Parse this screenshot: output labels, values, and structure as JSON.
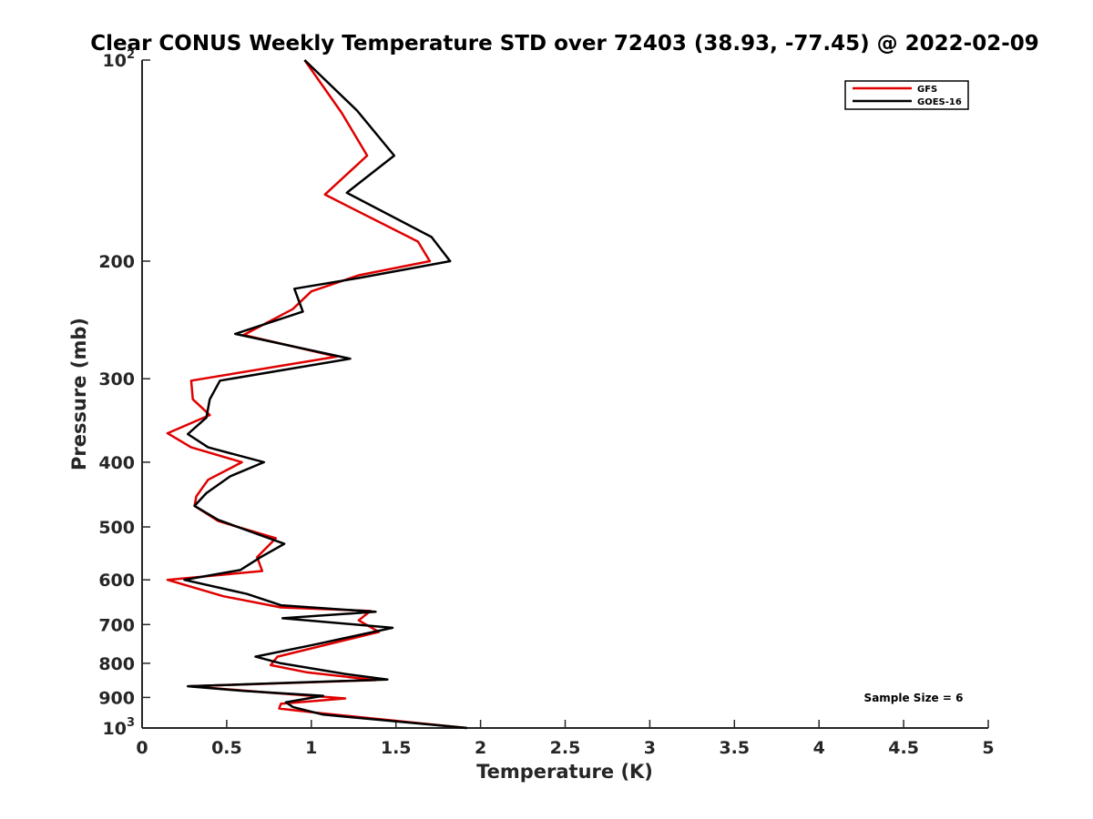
{
  "chart_data": {
    "type": "line",
    "title": "Clear CONUS Weekly Temperature STD over 72403 (38.93, -77.45) @ 2022-02-09",
    "xlabel": "Temperature (K)",
    "ylabel": "Pressure (mb)",
    "xlim": [
      0,
      5
    ],
    "ylim": [
      100,
      1000
    ],
    "y_scale": "log",
    "y_reversed": true,
    "x_ticks": [
      "0",
      "0.5",
      "1",
      "1.5",
      "2",
      "2.5",
      "3",
      "3.5",
      "4",
      "4.5",
      "5"
    ],
    "x_tick_values": [
      0,
      0.5,
      1,
      1.5,
      2,
      2.5,
      3,
      3.5,
      4,
      4.5,
      5
    ],
    "y_tick_values": [
      100,
      200,
      300,
      400,
      500,
      600,
      700,
      800,
      900,
      1000
    ],
    "y_tick_labels": [
      {
        "base": "10",
        "exp": "2"
      },
      {
        "base": "200"
      },
      {
        "base": "300"
      },
      {
        "base": "400"
      },
      {
        "base": "500"
      },
      {
        "base": "600"
      },
      {
        "base": "700"
      },
      {
        "base": "800"
      },
      {
        "base": "900"
      },
      {
        "base": "10",
        "exp": "3"
      }
    ],
    "grid": false,
    "legend_position": "top-right",
    "annotation": "Sample Size = 6",
    "series": [
      {
        "name": "GFS",
        "color": "#e00000",
        "points": [
          [
            0.96,
            100
          ],
          [
            1.18,
            120
          ],
          [
            1.33,
            139
          ],
          [
            1.08,
            159
          ],
          [
            1.63,
            187
          ],
          [
            1.7,
            200
          ],
          [
            1.28,
            210
          ],
          [
            1.0,
            222
          ],
          [
            0.89,
            236
          ],
          [
            0.6,
            258
          ],
          [
            1.15,
            278
          ],
          [
            0.29,
            302
          ],
          [
            0.3,
            322
          ],
          [
            0.4,
            340
          ],
          [
            0.15,
            362
          ],
          [
            0.29,
            380
          ],
          [
            0.59,
            400
          ],
          [
            0.39,
            425
          ],
          [
            0.32,
            450
          ],
          [
            0.31,
            465
          ],
          [
            0.45,
            490
          ],
          [
            0.79,
            520
          ],
          [
            0.68,
            555
          ],
          [
            0.71,
            582
          ],
          [
            0.15,
            600
          ],
          [
            0.48,
            635
          ],
          [
            0.82,
            660
          ],
          [
            1.35,
            668
          ],
          [
            1.28,
            690
          ],
          [
            1.4,
            718
          ],
          [
            1.0,
            760
          ],
          [
            0.8,
            782
          ],
          [
            0.76,
            805
          ],
          [
            0.97,
            825
          ],
          [
            1.38,
            848
          ],
          [
            0.28,
            866
          ],
          [
            0.75,
            885
          ],
          [
            1.2,
            903
          ],
          [
            0.82,
            920
          ],
          [
            0.81,
            935
          ],
          [
            1.05,
            950
          ],
          [
            1.92,
            1000
          ]
        ]
      },
      {
        "name": "GOES-16",
        "color": "#000000",
        "points": [
          [
            0.96,
            100
          ],
          [
            1.27,
            119
          ],
          [
            1.49,
            139
          ],
          [
            1.21,
            158
          ],
          [
            1.71,
            184
          ],
          [
            1.82,
            200
          ],
          [
            1.28,
            212
          ],
          [
            0.9,
            220
          ],
          [
            0.95,
            238
          ],
          [
            0.55,
            257
          ],
          [
            1.23,
            280
          ],
          [
            0.46,
            302
          ],
          [
            0.4,
            322
          ],
          [
            0.38,
            343
          ],
          [
            0.27,
            363
          ],
          [
            0.39,
            380
          ],
          [
            0.72,
            400
          ],
          [
            0.52,
            420
          ],
          [
            0.38,
            445
          ],
          [
            0.31,
            465
          ],
          [
            0.45,
            488
          ],
          [
            0.84,
            530
          ],
          [
            0.7,
            555
          ],
          [
            0.58,
            580
          ],
          [
            0.25,
            600
          ],
          [
            0.62,
            630
          ],
          [
            0.82,
            655
          ],
          [
            1.38,
            670
          ],
          [
            0.83,
            685
          ],
          [
            1.48,
            708
          ],
          [
            1.02,
            750
          ],
          [
            0.67,
            782
          ],
          [
            0.82,
            800
          ],
          [
            1.2,
            830
          ],
          [
            1.45,
            846
          ],
          [
            0.27,
            866
          ],
          [
            0.6,
            880
          ],
          [
            1.07,
            895
          ],
          [
            0.85,
            915
          ],
          [
            0.89,
            930
          ],
          [
            1.07,
            955
          ],
          [
            1.92,
            1000
          ]
        ]
      }
    ]
  }
}
